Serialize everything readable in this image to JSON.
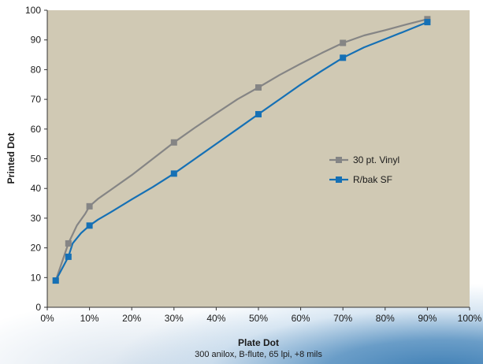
{
  "chart_data": {
    "type": "line",
    "xlabel": "Plate Dot",
    "subtitle": "300 anilox, B-flute, 65 lpi, +8 mils",
    "ylabel": "Printed Dot",
    "xlim": [
      0,
      100
    ],
    "ylim": [
      0,
      100
    ],
    "x_ticks": [
      "0%",
      "10%",
      "20%",
      "30%",
      "40%",
      "50%",
      "60%",
      "70%",
      "80%",
      "90%",
      "100%"
    ],
    "y_ticks": [
      "0",
      "10",
      "20",
      "30",
      "40",
      "50",
      "60",
      "70",
      "80",
      "90",
      "100"
    ],
    "grid": false,
    "legend_position": "right-middle",
    "plot_background": "#d0c9b4",
    "series": [
      {
        "name": "30 pt. Vinyl",
        "color": "#858585",
        "marker": "square",
        "x": [
          2,
          5,
          10,
          30,
          50,
          70,
          90
        ],
        "y": [
          9,
          21.5,
          34,
          55.5,
          74,
          89,
          97
        ],
        "line_x": [
          2,
          5,
          7,
          9,
          10,
          12,
          15,
          20,
          25,
          30,
          35,
          40,
          45,
          50,
          55,
          60,
          65,
          70,
          75,
          80,
          85,
          90
        ],
        "line_y": [
          9,
          21.5,
          27.5,
          31.5,
          34,
          36.5,
          39.5,
          44.5,
          50,
          55.5,
          60.5,
          65.3,
          70,
          74,
          78.2,
          82,
          85.6,
          89,
          91.5,
          93.3,
          95.2,
          97
        ]
      },
      {
        "name": "R/bak SF",
        "color": "#1570b5",
        "marker": "square",
        "x": [
          2,
          5,
          10,
          30,
          50,
          70,
          90
        ],
        "y": [
          9,
          17,
          27.5,
          45,
          65,
          84,
          96
        ],
        "line_x": [
          2,
          5,
          6,
          8,
          10,
          12,
          15,
          20,
          25,
          30,
          35,
          40,
          45,
          50,
          55,
          60,
          65,
          70,
          75,
          80,
          85,
          90
        ],
        "line_y": [
          9,
          17,
          21.5,
          25,
          27.5,
          29.5,
          32,
          36.3,
          40.5,
          45,
          50,
          55,
          60,
          65,
          70,
          75,
          79.6,
          84,
          87.5,
          90.3,
          93.1,
          96
        ]
      }
    ]
  }
}
